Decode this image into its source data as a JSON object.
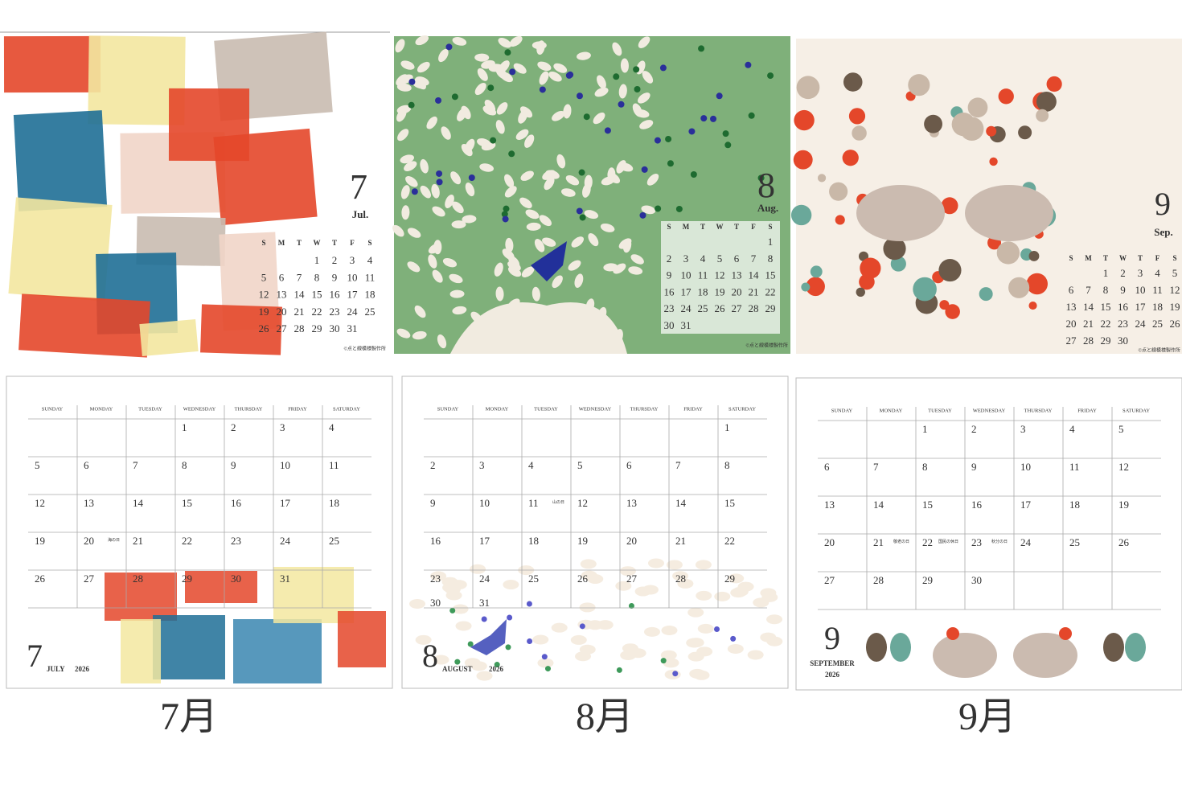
{
  "weekdays_short": [
    "S",
    "M",
    "T",
    "W",
    "T",
    "F",
    "S"
  ],
  "weekdays": [
    "SUNDAY",
    "MONDAY",
    "TUESDAY",
    "WEDNESDAY",
    "THURSDAY",
    "FRIDAY",
    "SATURDAY"
  ],
  "months": [
    {
      "number": "7",
      "abbr": "Jul.",
      "name": "JULY",
      "year": "2026",
      "caption": "7月",
      "copyright": "©点と線模様製作所",
      "weeks": [
        [
          null,
          null,
          null,
          1,
          2,
          3,
          4
        ],
        [
          5,
          6,
          7,
          8,
          9,
          10,
          11
        ],
        [
          12,
          13,
          14,
          15,
          16,
          17,
          18
        ],
        [
          19,
          20,
          21,
          22,
          23,
          24,
          25
        ],
        [
          26,
          27,
          28,
          29,
          30,
          31,
          null
        ]
      ],
      "holidays": [
        {
          "day": 20,
          "label": "海の日"
        }
      ]
    },
    {
      "number": "8",
      "abbr": "Aug.",
      "name": "AUGUST",
      "year": "2026",
      "caption": "8月",
      "copyright": "©点と線模様製作所",
      "weeks": [
        [
          null,
          null,
          null,
          null,
          null,
          null,
          1
        ],
        [
          2,
          3,
          4,
          5,
          6,
          7,
          8
        ],
        [
          9,
          10,
          11,
          12,
          13,
          14,
          15
        ],
        [
          16,
          17,
          18,
          19,
          20,
          21,
          22
        ],
        [
          23,
          24,
          25,
          26,
          27,
          28,
          29
        ],
        [
          30,
          31,
          null,
          null,
          null,
          null,
          null
        ]
      ],
      "holidays": [
        {
          "day": 11,
          "label": "山の日"
        }
      ]
    },
    {
      "number": "9",
      "abbr": "Sep.",
      "name": "SEPTEMBER",
      "year": "2026",
      "caption": "9月",
      "copyright": "©点と線模様製作所",
      "weeks": [
        [
          null,
          null,
          1,
          2,
          3,
          4,
          5
        ],
        [
          6,
          7,
          8,
          9,
          10,
          11,
          12
        ],
        [
          13,
          14,
          15,
          16,
          17,
          18,
          19
        ],
        [
          20,
          21,
          22,
          23,
          24,
          25,
          26
        ],
        [
          27,
          28,
          29,
          30,
          null,
          null,
          null
        ]
      ],
      "holidays": [
        {
          "day": 21,
          "label": "敬老の日"
        },
        {
          "day": 22,
          "label": "国民の休日"
        },
        {
          "day": 23,
          "label": "秋分の日"
        }
      ]
    }
  ]
}
